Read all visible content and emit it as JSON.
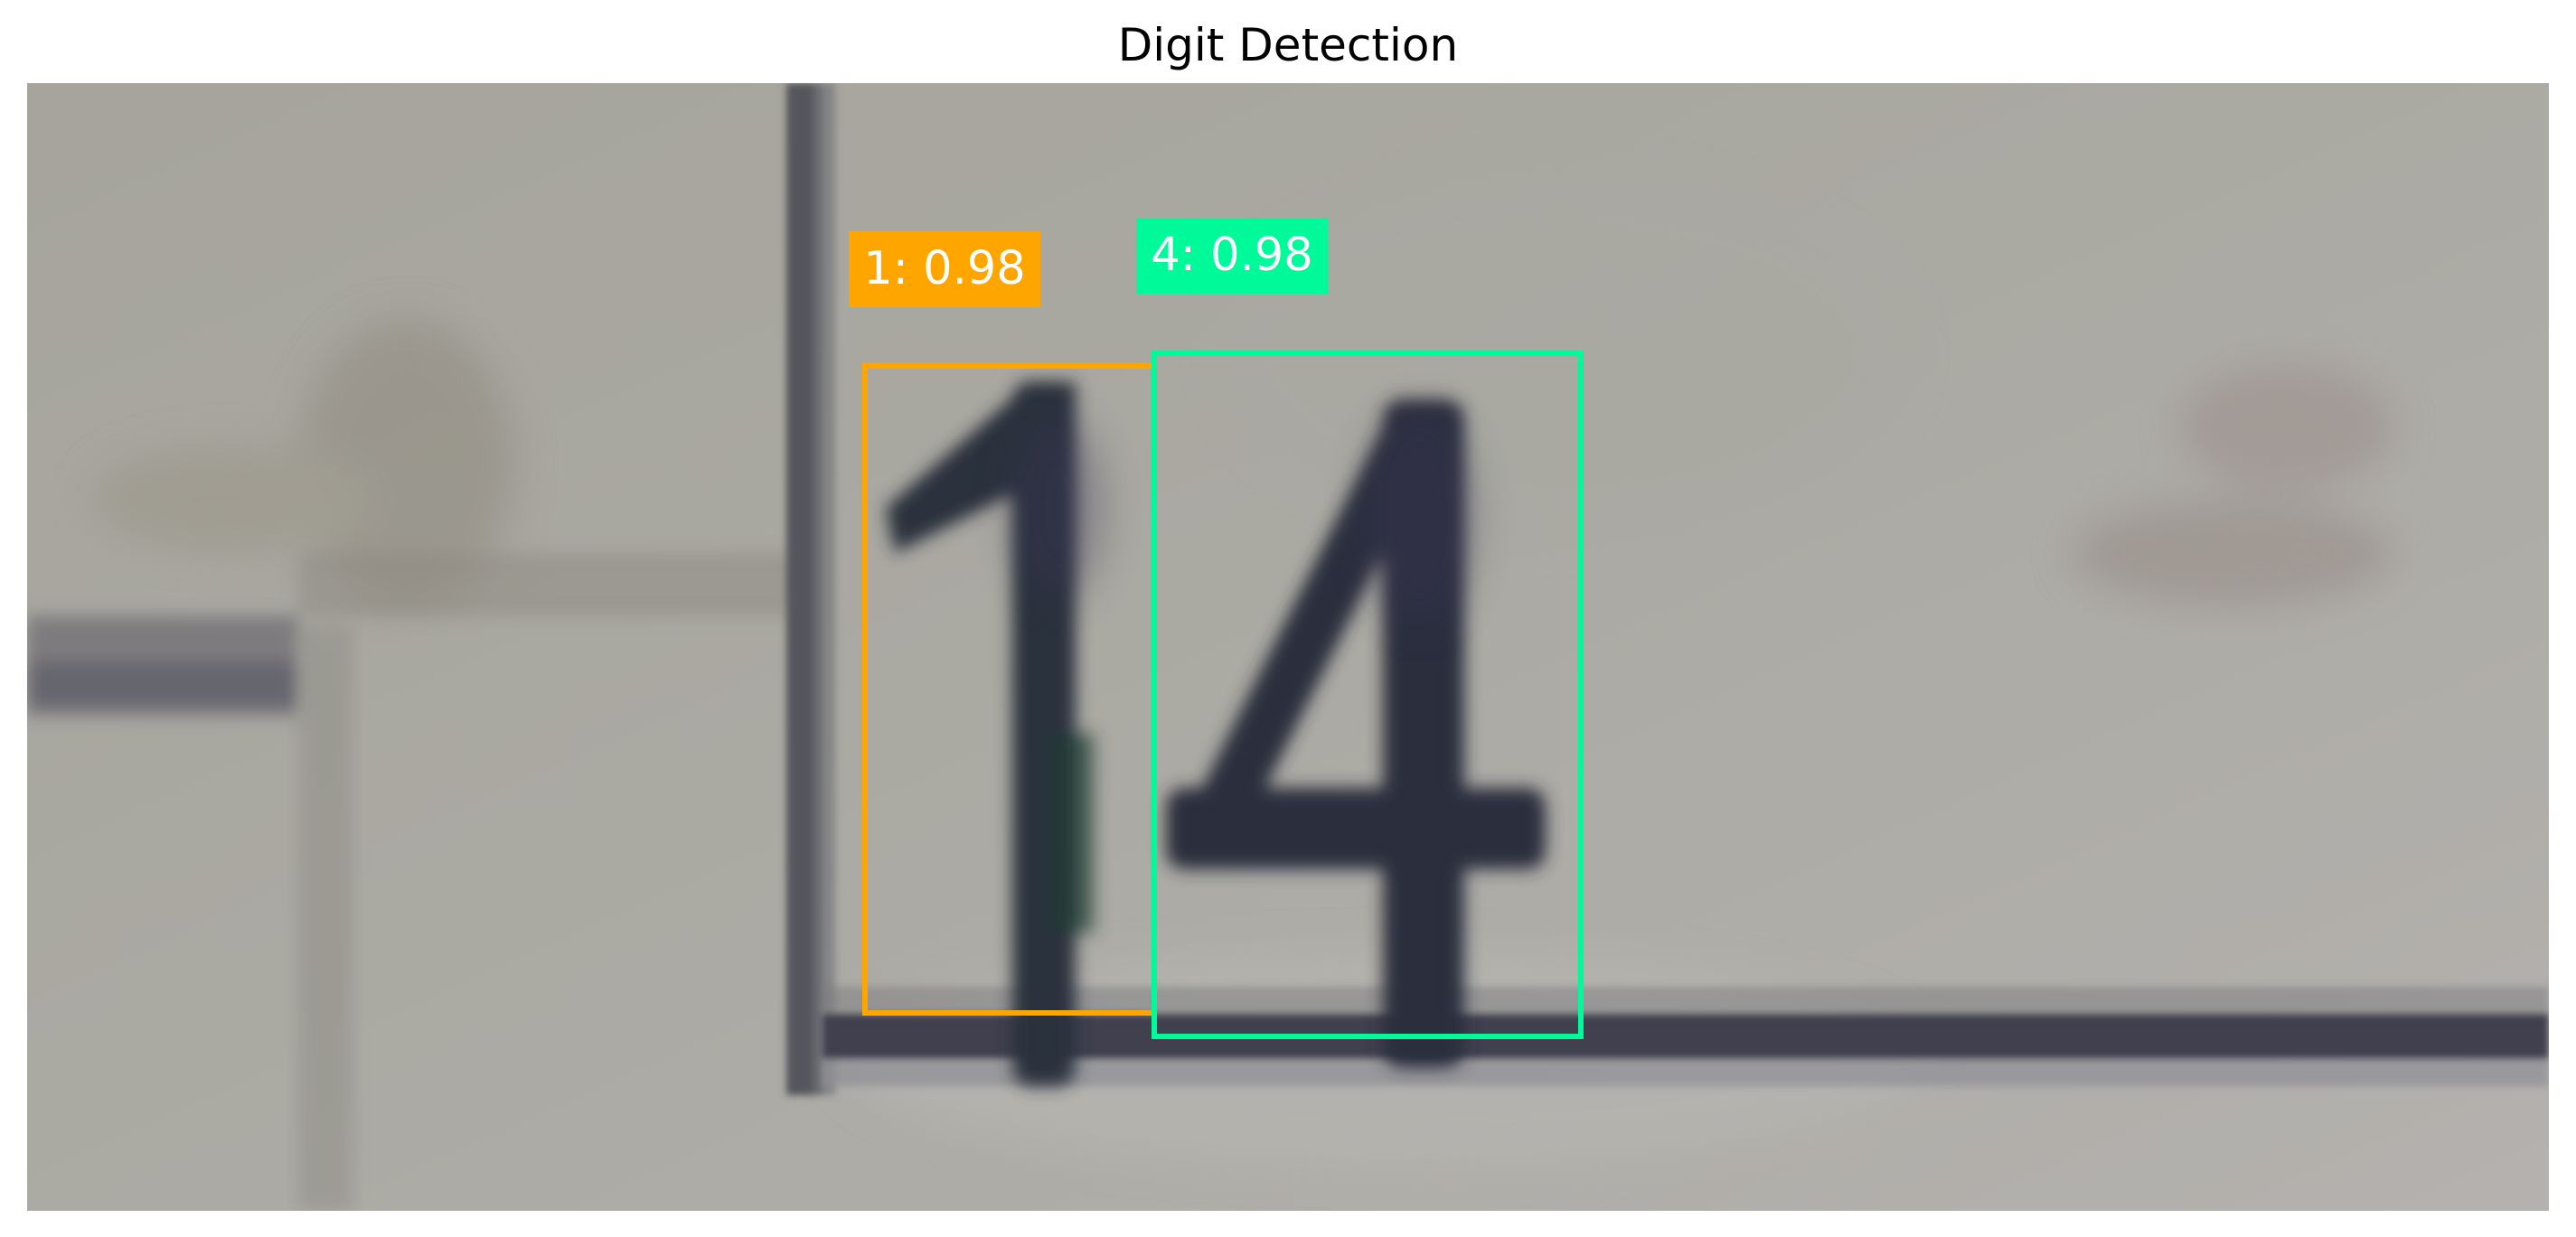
{
  "title": "Digit Detection",
  "detections": [
    {
      "class": "1",
      "score": "0.98",
      "label_text": "1: 0.98",
      "color": "#FFA500"
    },
    {
      "class": "4",
      "score": "0.98",
      "label_text": "4: 0.98",
      "color": "#00FA9A"
    }
  ],
  "colors": {
    "background_wall": "#a7a59e",
    "digit_ink": "#2b2f3c",
    "frame_line": "#4a4c57"
  }
}
